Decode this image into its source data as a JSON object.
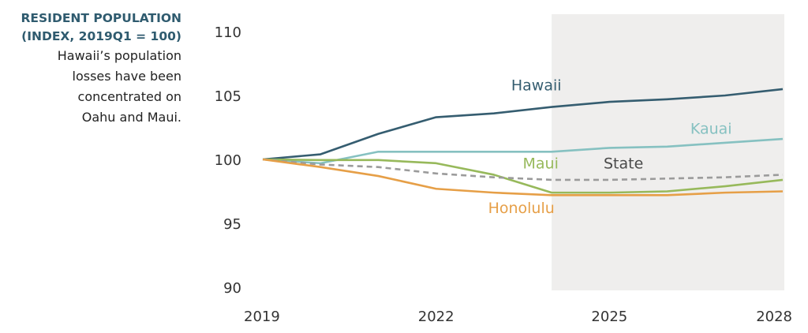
{
  "sidebar": {
    "title_line1": "RESIDENT POPULATION",
    "title_line2": "(INDEX, 2019Q1 = 100)",
    "description": [
      "Hawaii’s population",
      "losses have been",
      "concentrated on",
      "Oahu and Maui."
    ]
  },
  "chart_data": {
    "type": "line",
    "title": "RESIDENT POPULATION (INDEX, 2019Q1 = 100)",
    "xlabel": "",
    "ylabel": "",
    "x": [
      2019,
      2020,
      2021,
      2022,
      2023,
      2024,
      2025,
      2026,
      2027,
      2028
    ],
    "xlim": [
      2019,
      2028
    ],
    "ylim": [
      90,
      110
    ],
    "x_ticks": [
      "2019",
      "2022",
      "2025",
      "2028"
    ],
    "x_tick_values": [
      2019,
      2022,
      2025,
      2028
    ],
    "y_ticks": [
      "110",
      "105",
      "100",
      "95",
      "90"
    ],
    "y_tick_values": [
      110,
      105,
      100,
      95,
      90
    ],
    "forecast_shading": [
      2024,
      2028
    ],
    "grid": false,
    "series": [
      {
        "name": "Hawaii",
        "color": "#355d70",
        "dashed": false,
        "values": [
          100,
          100.4,
          102.0,
          103.3,
          103.6,
          104.1,
          104.5,
          104.7,
          105.0,
          105.5
        ],
        "label_at": [
          2023.3,
          105.4
        ]
      },
      {
        "name": "Kauai",
        "color": "#86c1c1",
        "dashed": false,
        "values": [
          100,
          99.7,
          100.6,
          100.6,
          100.6,
          100.6,
          100.9,
          101.0,
          101.3,
          101.6
        ],
        "label_at": [
          2026.4,
          102.0
        ]
      },
      {
        "name": "Maui",
        "color": "#97b95b",
        "dashed": false,
        "values": [
          100,
          99.95,
          99.95,
          99.7,
          98.8,
          97.4,
          97.4,
          97.5,
          97.9,
          98.4
        ],
        "label_at": [
          2023.5,
          99.3
        ]
      },
      {
        "name": "State",
        "color": "#9b9b9b",
        "dashed": true,
        "values": [
          100,
          99.6,
          99.4,
          98.9,
          98.6,
          98.4,
          98.4,
          98.5,
          98.6,
          98.8
        ],
        "label_at": [
          2024.9,
          99.3
        ]
      },
      {
        "name": "Honolulu",
        "color": "#e69f47",
        "dashed": false,
        "values": [
          100,
          99.4,
          98.7,
          97.7,
          97.4,
          97.2,
          97.2,
          97.2,
          97.4,
          97.5
        ],
        "label_at": [
          2022.9,
          95.8
        ]
      }
    ]
  }
}
